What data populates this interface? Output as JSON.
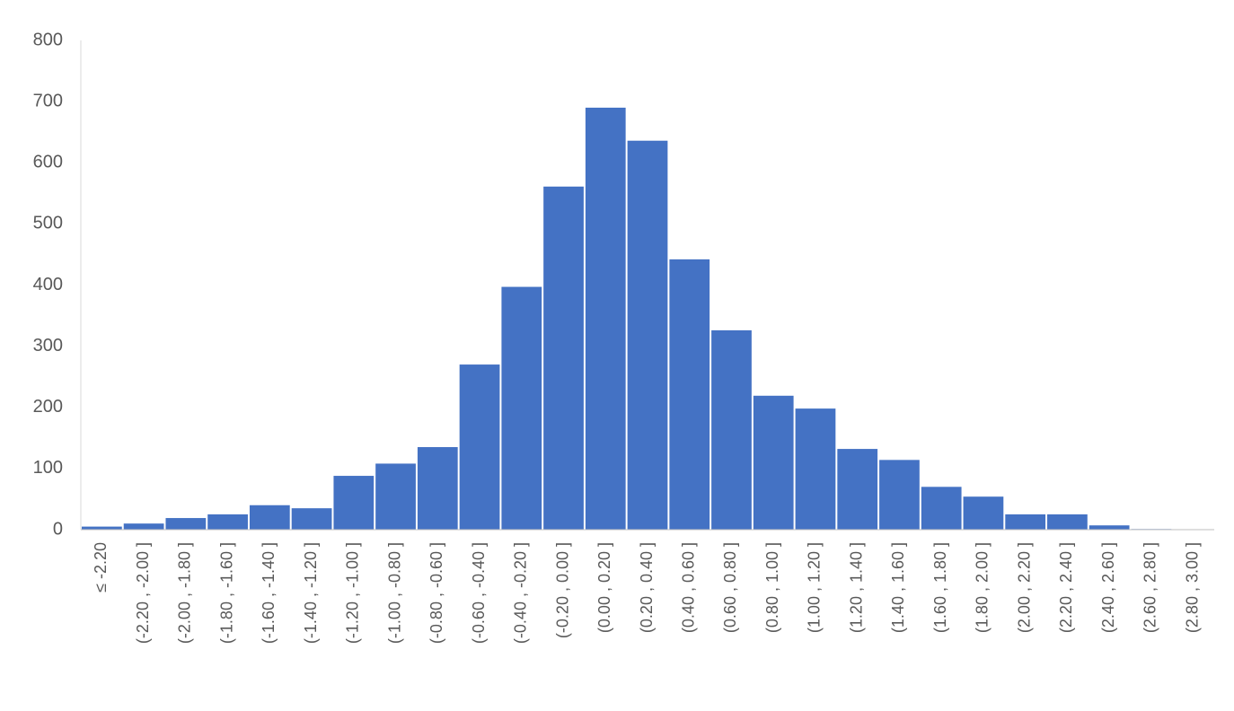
{
  "chart_data": {
    "type": "bar",
    "categories": [
      "≤ -2.20",
      "(-2.20 , -2.00 ]",
      "(-2.00 , -1.80 ]",
      "(-1.80 , -1.60 ]",
      "(-1.60 , -1.40 ]",
      "(-1.40 , -1.20 ]",
      "(-1.20 , -1.00 ]",
      "(-1.00 , -0.80 ]",
      "(-0.80 , -0.60 ]",
      "(-0.60 , -0.40 ]",
      "(-0.40 , -0.20 ]",
      "(-0.20 , 0.00 ]",
      "(0.00 , 0.20 ]",
      "(0.20 , 0.40 ]",
      "(0.40 , 0.60 ]",
      "(0.60 , 0.80 ]",
      "(0.80 , 1.00 ]",
      "(1.00 , 1.20 ]",
      "(1.20 , 1.40 ]",
      "(1.40 , 1.60 ]",
      "(1.60 , 1.80 ]",
      "(1.80 , 2.00 ]",
      "(2.00 , 2.20 ]",
      "(2.20 , 2.40 ]",
      "(2.40 , 2.60 ]",
      "(2.60 , 2.80 ]",
      "(2.80 , 3.00 ]"
    ],
    "values": [
      5,
      10,
      19,
      25,
      40,
      35,
      88,
      108,
      135,
      270,
      397,
      561,
      690,
      636,
      442,
      326,
      219,
      198,
      132,
      114,
      70,
      54,
      25,
      25,
      7,
      1,
      0
    ],
    "color": "#4472c4",
    "ylim": [
      0,
      800
    ],
    "yticks": [
      0,
      100,
      200,
      300,
      400,
      500,
      600,
      700,
      800
    ],
    "grid": false
  }
}
